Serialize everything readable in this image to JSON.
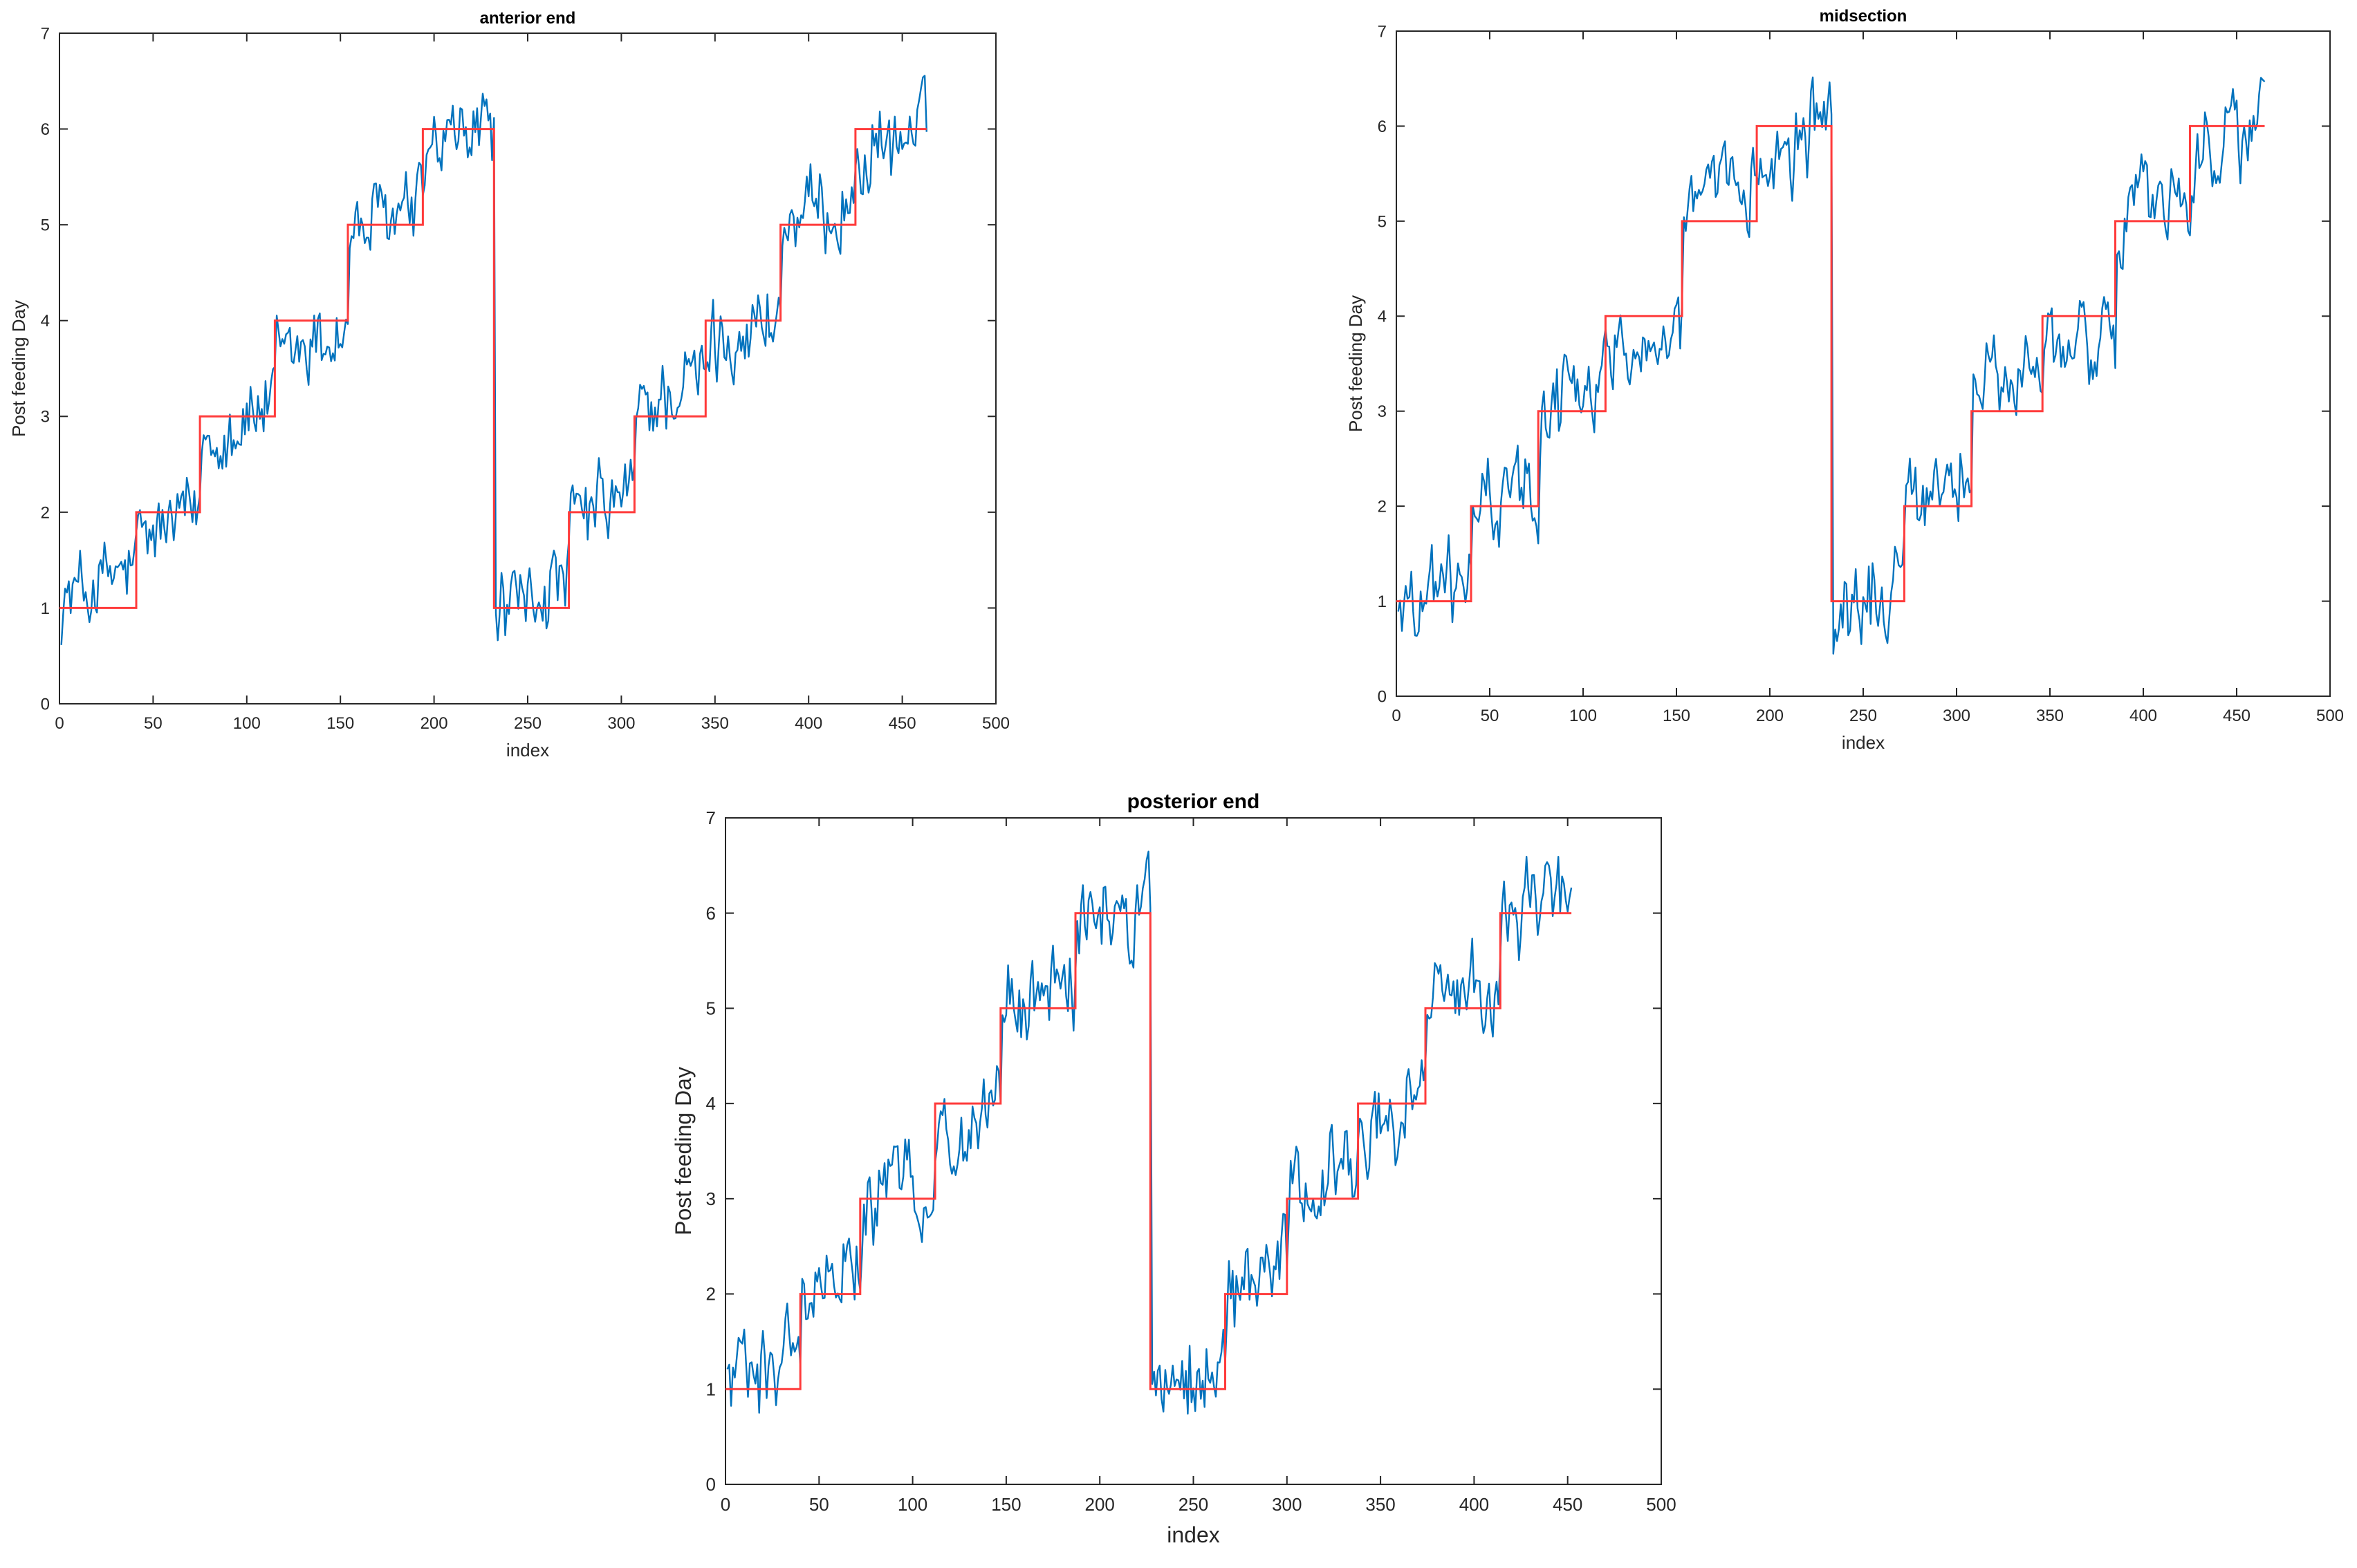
{
  "chart_data": [
    {
      "type": "line",
      "title": "anterior end",
      "xlabel": "index",
      "ylabel": "Post feeding Day",
      "xlim": [
        0,
        500
      ],
      "ylim": [
        0,
        7
      ],
      "xticks": [
        "0",
        "50",
        "100",
        "150",
        "200",
        "250",
        "300",
        "350",
        "400",
        "450",
        "500"
      ],
      "yticks": [
        "0",
        "1",
        "2",
        "3",
        "4",
        "5",
        "6",
        "7"
      ],
      "colors": {
        "noisy": "#0072BD",
        "step": "#FF3B3B"
      },
      "step_series": {
        "edges": [
          0,
          41,
          75,
          115,
          154,
          194,
          232,
          272,
          307,
          345,
          385,
          425,
          463
        ],
        "levels": [
          1,
          2,
          3,
          4,
          5,
          6,
          1,
          2,
          3,
          4,
          5,
          6
        ]
      },
      "noisy_series": {
        "n": 463,
        "segment_means": [
          1.25,
          1.85,
          2.95,
          3.75,
          5.05,
          5.9,
          1.1,
          2.05,
          3.25,
          3.9,
          5.1,
          5.85
        ],
        "noise": 0.38
      }
    },
    {
      "type": "line",
      "title": "midsection",
      "xlabel": "index",
      "ylabel": "Post feeding Day",
      "xlim": [
        0,
        500
      ],
      "ylim": [
        0,
        7
      ],
      "xticks": [
        "0",
        "50",
        "100",
        "150",
        "200",
        "250",
        "300",
        "350",
        "400",
        "450",
        "500"
      ],
      "yticks": [
        "0",
        "1",
        "2",
        "3",
        "4",
        "5",
        "6",
        "7"
      ],
      "colors": {
        "noisy": "#0072BD",
        "step": "#FF3B3B"
      },
      "step_series": {
        "edges": [
          0,
          40,
          76,
          112,
          153,
          193,
          233,
          272,
          308,
          346,
          385,
          425,
          465
        ],
        "levels": [
          1,
          2,
          3,
          4,
          5,
          6,
          1,
          2,
          3,
          4,
          5,
          6
        ]
      },
      "noisy_series": {
        "n": 465,
        "segment_means": [
          1.1,
          2.1,
          3.2,
          3.8,
          5.2,
          5.9,
          1.0,
          2.3,
          3.3,
          3.7,
          5.2,
          5.9
        ],
        "noise": 0.4
      }
    },
    {
      "type": "line",
      "title": "posterior end",
      "xlabel": "index",
      "ylabel": "Post feeding Day",
      "xlim": [
        0,
        500
      ],
      "ylim": [
        0,
        7
      ],
      "xticks": [
        "0",
        "50",
        "100",
        "150",
        "200",
        "250",
        "300",
        "350",
        "400",
        "450",
        "500"
      ],
      "yticks": [
        "0",
        "1",
        "2",
        "3",
        "4",
        "5",
        "6",
        "7"
      ],
      "colors": {
        "noisy": "#0072BD",
        "step": "#FF3B3B"
      },
      "step_series": {
        "edges": [
          0,
          40,
          72,
          112,
          147,
          187,
          227,
          267,
          300,
          338,
          374,
          414,
          452
        ],
        "levels": [
          1,
          2,
          3,
          4,
          5,
          6,
          1,
          2,
          3,
          4,
          5,
          6
        ]
      },
      "noisy_series": {
        "n": 452,
        "segment_means": [
          1.25,
          2.2,
          3.1,
          3.8,
          5.15,
          5.95,
          1.2,
          2.2,
          3.2,
          3.85,
          5.1,
          6.0
        ],
        "noise": 0.42
      }
    }
  ]
}
